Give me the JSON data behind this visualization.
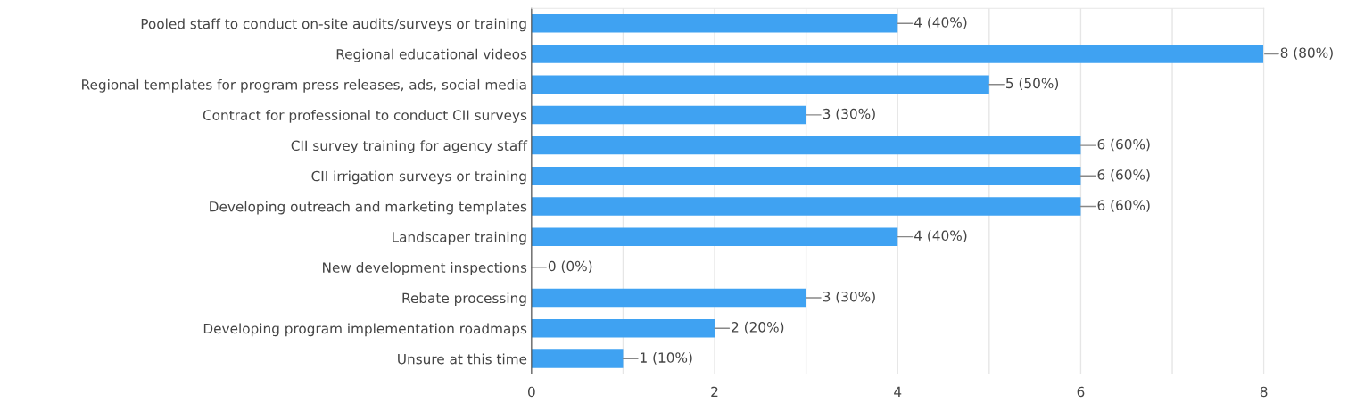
{
  "chart_data": {
    "type": "bar",
    "orientation": "horizontal",
    "categories": [
      "Pooled staff to conduct on-site audits/surveys or training",
      "Regional educational videos",
      "Regional templates for program press releases, ads, social media",
      "Contract for professional to conduct CII surveys",
      "CII survey training for agency staff",
      "CII irrigation surveys or training",
      "Developing outreach and marketing templates",
      "Landscaper training",
      "New development inspections",
      "Rebate processing",
      "Developing program implementation roadmaps",
      "Unsure at this time"
    ],
    "values": [
      4,
      8,
      5,
      3,
      6,
      6,
      6,
      4,
      0,
      3,
      2,
      1
    ],
    "value_labels": [
      "4 (40%)",
      "8 (80%)",
      "5 (50%)",
      "3 (30%)",
      "6 (60%)",
      "6 (60%)",
      "6 (60%)",
      "4 (40%)",
      "0 (0%)",
      "3 (30%)",
      "2 (20%)",
      "1 (10%)"
    ],
    "color": "#3fa2f2",
    "xlim": [
      0,
      8
    ],
    "xticks": [
      0,
      {
        "value": 1,
        "label": null
      },
      2,
      {
        "value": 3,
        "label": null
      },
      4,
      {
        "value": 5,
        "label": null
      },
      6,
      {
        "value": 7,
        "label": null
      },
      8
    ],
    "grid": "x"
  }
}
